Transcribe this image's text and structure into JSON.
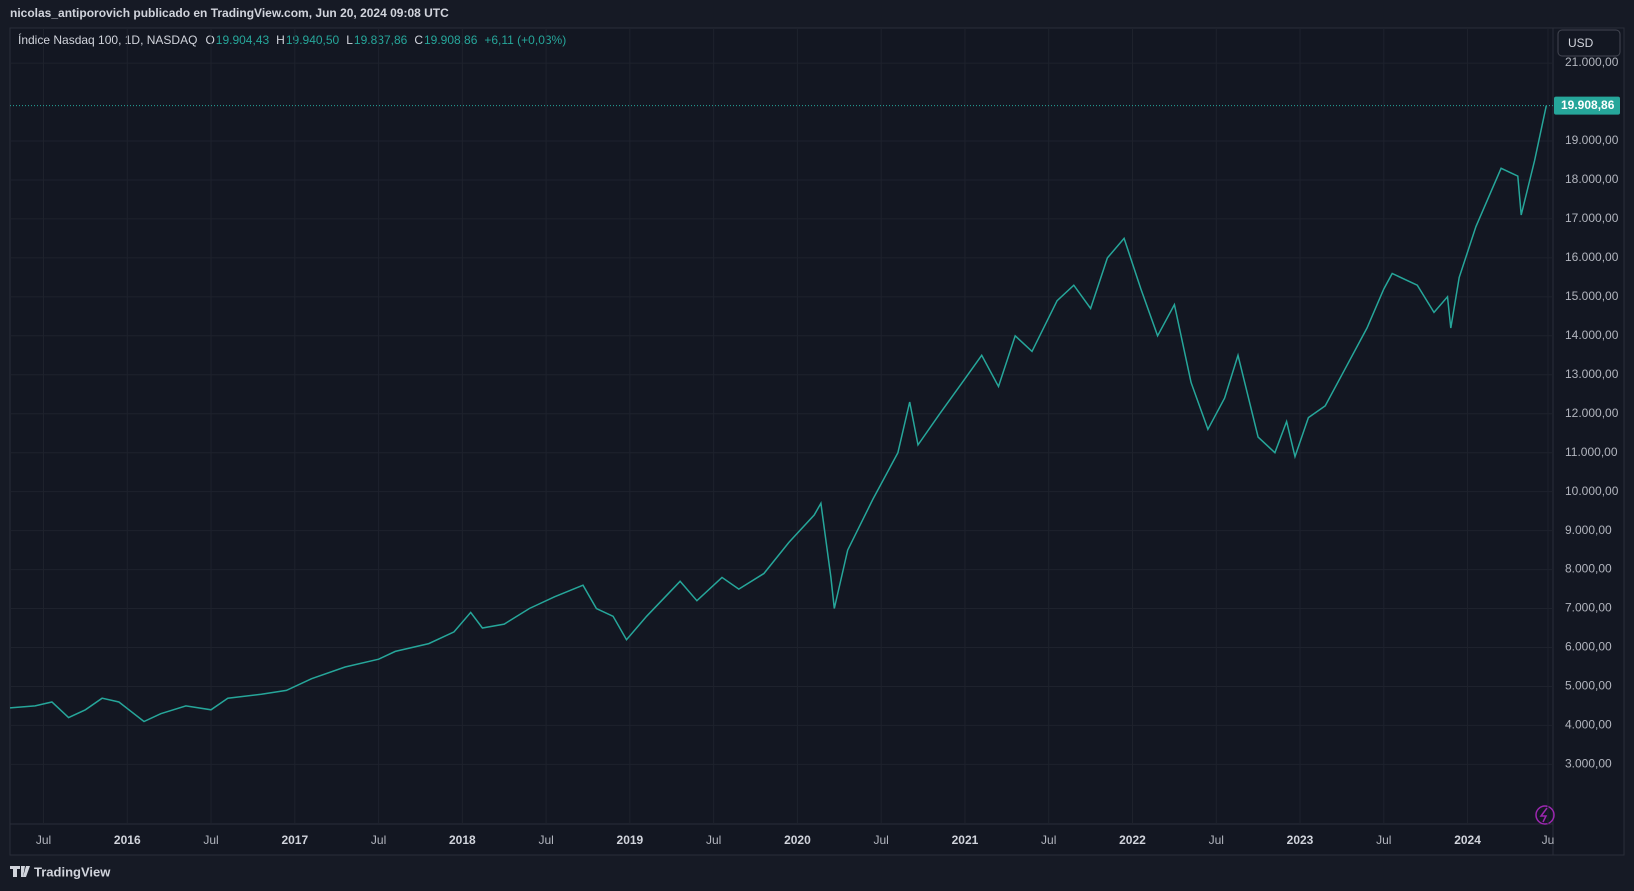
{
  "header": {
    "publisher": "nicolas_antiporovich publicado en TradingView.com, Jun 20, 2024 09:08 UTC"
  },
  "footer": {
    "brand": "TradingView"
  },
  "chart_data": {
    "type": "line",
    "title": "Índice Nasdaq 100, 1D, NASDAQ",
    "ohlc": [
      [
        "O",
        "19.904,43"
      ],
      [
        "H",
        "19.940,50"
      ],
      [
        "L",
        "19.837,86"
      ],
      [
        "C",
        "19.908,86"
      ]
    ],
    "change": "+6,11 (+0,03%)",
    "currency": "USD",
    "color": "#26a69a",
    "grid": true,
    "x": [
      2015.3,
      2015.45,
      2015.55,
      2015.65,
      2015.75,
      2015.85,
      2015.95,
      2016.1,
      2016.2,
      2016.35,
      2016.5,
      2016.6,
      2016.8,
      2016.95,
      2017.1,
      2017.3,
      2017.5,
      2017.6,
      2017.8,
      2017.95,
      2018.05,
      2018.12,
      2018.25,
      2018.4,
      2018.55,
      2018.72,
      2018.8,
      2018.9,
      2018.98,
      2019.1,
      2019.3,
      2019.4,
      2019.55,
      2019.65,
      2019.8,
      2019.95,
      2020.1,
      2020.14,
      2020.2,
      2020.22,
      2020.3,
      2020.45,
      2020.6,
      2020.67,
      2020.72,
      2020.85,
      2021.0,
      2021.1,
      2021.2,
      2021.3,
      2021.4,
      2021.55,
      2021.65,
      2021.75,
      2021.85,
      2021.95,
      2022.05,
      2022.15,
      2022.25,
      2022.35,
      2022.45,
      2022.55,
      2022.63,
      2022.75,
      2022.85,
      2022.92,
      2022.97,
      2023.05,
      2023.15,
      2023.25,
      2023.4,
      2023.5,
      2023.55,
      2023.7,
      2023.8,
      2023.88,
      2023.9,
      2023.95,
      2024.05,
      2024.15,
      2024.2,
      2024.3,
      2024.32,
      2024.4,
      2024.47
    ],
    "values": [
      4450,
      4500,
      4600,
      4200,
      4400,
      4700,
      4600,
      4100,
      4300,
      4500,
      4400,
      4700,
      4800,
      4900,
      5200,
      5500,
      5700,
      5900,
      6100,
      6400,
      6900,
      6500,
      6600,
      7000,
      7300,
      7600,
      7000,
      6800,
      6200,
      6800,
      7700,
      7200,
      7800,
      7500,
      7900,
      8700,
      9400,
      9700,
      7800,
      7000,
      8500,
      9800,
      11000,
      12300,
      11200,
      12000,
      12900,
      13500,
      12700,
      14000,
      13600,
      14900,
      15300,
      14700,
      16000,
      16500,
      15200,
      14000,
      14800,
      12800,
      11600,
      12400,
      13500,
      11400,
      11000,
      11800,
      10900,
      11900,
      12200,
      13000,
      14200,
      15200,
      15600,
      15300,
      14600,
      15000,
      14200,
      15500,
      16800,
      17800,
      18300,
      18100,
      17100,
      18500,
      19908.86
    ],
    "last_price": {
      "value": 19908.86,
      "label": "19.908,86"
    },
    "xlim": [
      2015.3,
      2024.51
    ],
    "xticks": [
      {
        "value": 2015.5,
        "label": "Jul"
      },
      2016,
      {
        "value": 2016.5,
        "label": "Jul"
      },
      2017,
      {
        "value": 2017.5,
        "label": "Jul"
      },
      2018,
      {
        "value": 2018.5,
        "label": "Jul"
      },
      2019,
      {
        "value": 2019.5,
        "label": "Jul"
      },
      2020,
      {
        "value": 2020.5,
        "label": "Jul"
      },
      2021,
      {
        "value": 2021.5,
        "label": "Jul"
      },
      2022,
      {
        "value": 2022.5,
        "label": "Jul"
      },
      2023,
      {
        "value": 2023.5,
        "label": "Jul"
      },
      2024,
      {
        "value": 2024.48,
        "label": "Ju"
      }
    ],
    "ylim": [
      1470,
      21900
    ],
    "yticks": [
      {
        "value": 3000,
        "label": "3.000,00"
      },
      {
        "value": 4000,
        "label": "4.000,00"
      },
      {
        "value": 5000,
        "label": "5.000,00"
      },
      {
        "value": 6000,
        "label": "6.000,00"
      },
      {
        "value": 7000,
        "label": "7.000,00"
      },
      {
        "value": 8000,
        "label": "8.000,00"
      },
      {
        "value": 9000,
        "label": "9.000,00"
      },
      {
        "value": 10000,
        "label": "10.000,00"
      },
      {
        "value": 11000,
        "label": "11.000,00"
      },
      {
        "value": 12000,
        "label": "12.000,00"
      },
      {
        "value": 13000,
        "label": "13.000,00"
      },
      {
        "value": 14000,
        "label": "14.000,00"
      },
      {
        "value": 15000,
        "label": "15.000,00"
      },
      {
        "value": 16000,
        "label": "16.000,00"
      },
      {
        "value": 17000,
        "label": "17.000,00"
      },
      {
        "value": 18000,
        "label": "18.000,00"
      },
      {
        "value": 19000,
        "label": "19.000,00"
      },
      {
        "value": 21000,
        "label": "21.000,00"
      }
    ]
  }
}
